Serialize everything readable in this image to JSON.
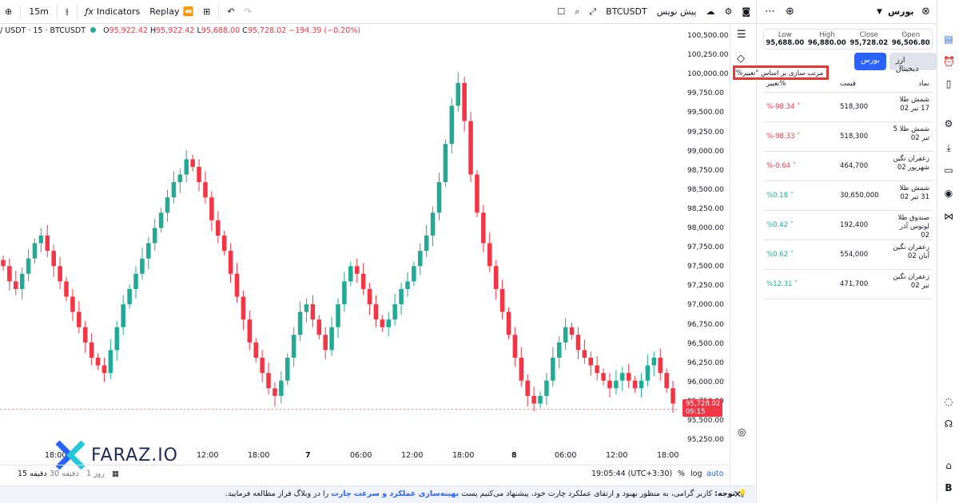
{
  "toolbar": {
    "interval": "15m",
    "indicators": "Indicators",
    "replay": "Replay",
    "symbol": "BTCUSDT",
    "draft": "پیش نویس"
  },
  "legend": {
    "pair": "/ USDT · 15 · BTCUSDT",
    "o_l": "O",
    "o": "95,922.42",
    "h_l": "H",
    "h": "95,922.42",
    "l_l": "L",
    "l": "95,688.00",
    "c_l": "C",
    "c": "95,728.02",
    "chg": "−194.39 (−0.20%)"
  },
  "price_scale": [
    "100,500.00",
    "100,250.00",
    "100,000.00",
    "99,750.00",
    "99,500.00",
    "99,250.00",
    "99,000.00",
    "98,750.00",
    "98,500.00",
    "98,250.00",
    "98,000.00",
    "97,750.00",
    "97,500.00",
    "97,250.00",
    "97,000.00",
    "96,750.00",
    "96,500.00",
    "96,250.00",
    "96,000.00",
    "95,750.00",
    "95,500.00",
    "95,250.00"
  ],
  "last_price": {
    "value": "95,728.02",
    "timer": "09:15"
  },
  "time_scale": [
    "18:00",
    "12:00",
    "18:00",
    "7",
    "06:00",
    "12:00",
    "18:00",
    "8",
    "06:00",
    "12:00",
    "18:00"
  ],
  "bottom": {
    "range_1": "15 دقیقه",
    "range_2": "30 دقیقه",
    "range_3": "1 روز",
    "clock": "19:05:44 (UTC+3:30)",
    "pct": "%",
    "log": "log",
    "auto": "auto"
  },
  "notice": {
    "label": "توجه:",
    "text1": "کاربر گرامی، به منظور بهبود و ارتقای عملکرد چارت خود، پیشنهاد می‌کنیم پست",
    "link": "بهینه‌سازی عملکرد و سرعت چارت",
    "text2": "را در وبلاگ فراز مطالعه فرمایید."
  },
  "panel": {
    "title": "بورس",
    "ohlc": [
      {
        "h": "Open",
        "v": "96,506.80"
      },
      {
        "h": "Close",
        "v": "95,728.02"
      },
      {
        "h": "High",
        "v": "96,880.00"
      },
      {
        "h": "Low",
        "v": "95,688.00"
      }
    ],
    "tab_active": "بورس",
    "tab_other": "ارز دیجیتال",
    "tooltip": "مرتب سازی بر اساس \"تغییر%\"",
    "headers": {
      "symbol": "نماد",
      "price": "قیمت",
      "change": "تغییر%"
    },
    "rows": [
      {
        "name": "شمش طلا 17 تیر 02",
        "price": "518,300",
        "chg": "%-98.34",
        "dir": "dn"
      },
      {
        "name": "شمش طلا 5 تیر 02",
        "price": "518,300",
        "chg": "%-98.33",
        "dir": "dn"
      },
      {
        "name": "زعفران نگین شهریور 02",
        "price": "464,700",
        "chg": "%-0.64",
        "dir": "dn"
      },
      {
        "name": "شمش طلا 31 تیر 02",
        "price": "30,650,000",
        "chg": "%0.18",
        "dir": "up"
      },
      {
        "name": "صندوق طلا لوتوس آذر 02",
        "price": "192,400",
        "chg": "%0.42",
        "dir": "up"
      },
      {
        "name": "زعفران نگین آبان 02",
        "price": "554,000",
        "chg": "%0.62",
        "dir": "up"
      },
      {
        "name": "زعفران نگین تیر 02",
        "price": "471,700",
        "chg": "%12.31",
        "dir": "up"
      }
    ]
  },
  "logo": {
    "text": "FARAZ.IO"
  },
  "chart_data": {
    "type": "candlestick",
    "ylim": [
      95250,
      100500
    ],
    "last": 95728.02,
    "closes": [
      97600,
      97400,
      97300,
      97500,
      97700,
      97900,
      98000,
      97800,
      97600,
      97400,
      97200,
      97000,
      96800,
      96600,
      96400,
      96300,
      96200,
      96500,
      96800,
      97100,
      97300,
      97500,
      97700,
      97900,
      98100,
      98300,
      98500,
      98700,
      98800,
      99000,
      98900,
      98700,
      98500,
      98200,
      98000,
      97800,
      97500,
      97200,
      96900,
      96600,
      96400,
      96200,
      96000,
      95900,
      96100,
      96400,
      96700,
      97000,
      97100,
      96900,
      96700,
      96500,
      96800,
      97100,
      97400,
      97600,
      97500,
      97300,
      97100,
      96900,
      96800,
      96900,
      97100,
      97300,
      97400,
      97600,
      97800,
      98000,
      98300,
      98700,
      99200,
      99700,
      100000,
      99500,
      98800,
      98300,
      97900,
      97600,
      97300,
      97000,
      96700,
      96400,
      96100,
      95900,
      95800,
      95900,
      96100,
      96400,
      96600,
      96800,
      96700,
      96500,
      96400,
      96300,
      96200,
      96100,
      96000,
      96100,
      96200,
      96100,
      96000,
      96100,
      96300,
      96400,
      96200,
      96000,
      95800
    ]
  }
}
